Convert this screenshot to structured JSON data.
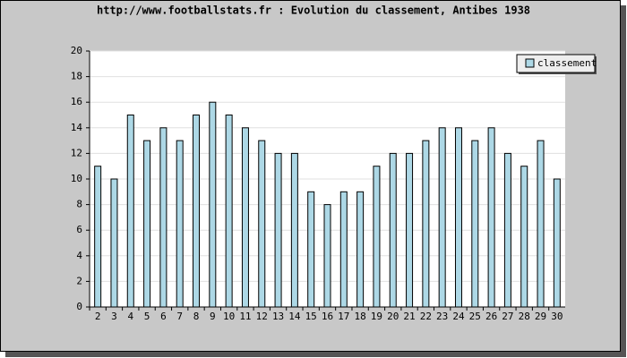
{
  "chart_data": {
    "type": "bar",
    "title": "http://www.footballstats.fr : Evolution du classement, Antibes 1938",
    "categories": [
      "2",
      "3",
      "4",
      "5",
      "6",
      "7",
      "8",
      "9",
      "10",
      "11",
      "12",
      "13",
      "14",
      "15",
      "16",
      "17",
      "18",
      "19",
      "20",
      "21",
      "22",
      "23",
      "24",
      "25",
      "26",
      "27",
      "28",
      "29",
      "30"
    ],
    "series": [
      {
        "name": "classement",
        "color": "#add8e6",
        "values": [
          11,
          10,
          15,
          13,
          14,
          13,
          15,
          16,
          15,
          14,
          13,
          12,
          12,
          9,
          8,
          9,
          9,
          11,
          12,
          12,
          13,
          14,
          14,
          13,
          14,
          12,
          11,
          13,
          10
        ]
      }
    ],
    "ylim": [
      0,
      20
    ],
    "yticks": [
      0,
      2,
      4,
      6,
      8,
      10,
      12,
      14,
      16,
      18,
      20
    ],
    "grid": true,
    "legend": "top-right"
  }
}
